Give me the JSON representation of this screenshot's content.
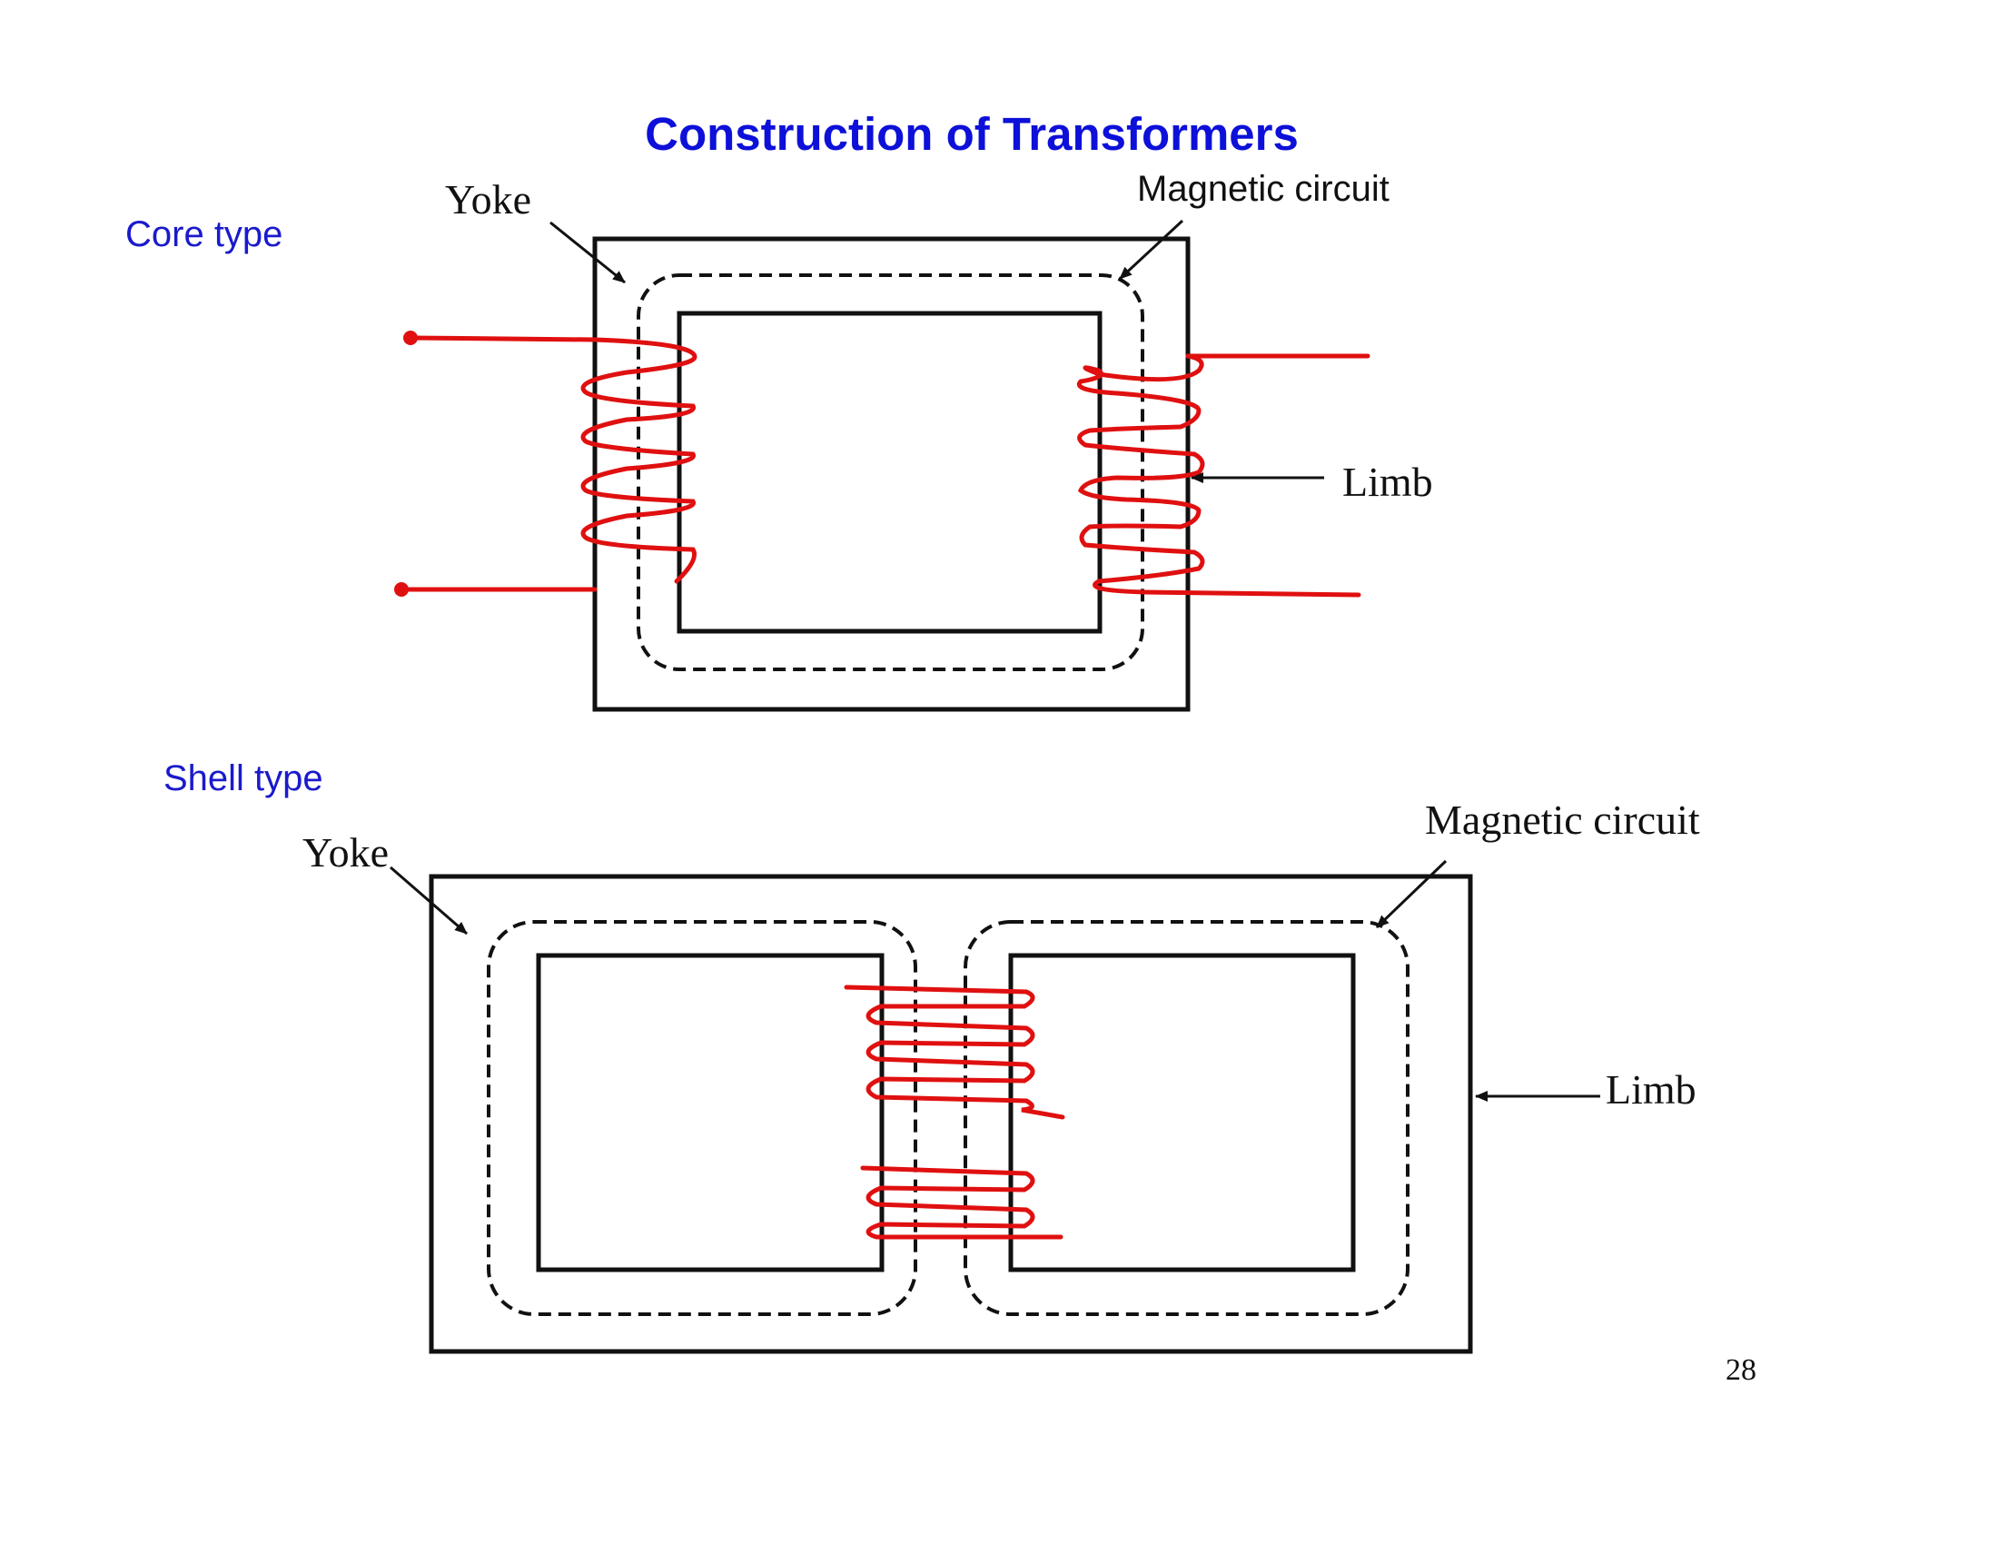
{
  "title": "Construction of Transformers",
  "page_number": "28",
  "colors": {
    "title": "#0d10d8",
    "section_label": "#1a1acc",
    "winding": "#e01010",
    "core": "#111111"
  },
  "core_type": {
    "label": "Core type",
    "yoke_label": "Yoke",
    "magnetic_circuit_label": "Magnetic circuit",
    "limb_label": "Limb"
  },
  "shell_type": {
    "label": "Shell type",
    "yoke_label": "Yoke",
    "magnetic_circuit_label": "Magnetic circuit",
    "limb_label": "Limb"
  }
}
